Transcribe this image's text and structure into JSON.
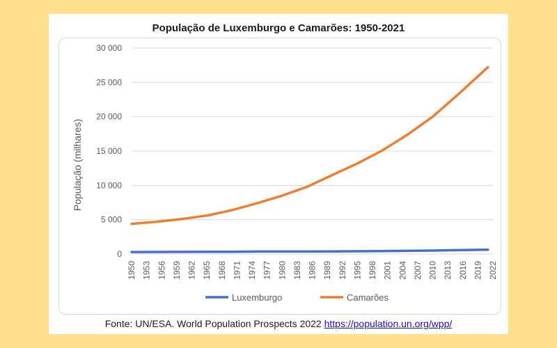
{
  "chart_data": {
    "type": "line",
    "title": "População de Luxemburgo e Camarões: 1950-2021",
    "ylabel": "População (milhares)",
    "xlabel": "",
    "ylim": [
      0,
      30000
    ],
    "yticks": [
      0,
      5000,
      10000,
      15000,
      20000,
      25000,
      30000
    ],
    "ytick_labels": [
      "0",
      "5 000",
      "10 000",
      "15 000",
      "20 000",
      "25 000",
      "30 000"
    ],
    "xlim": [
      1950,
      2022
    ],
    "xticks": [
      1950,
      1953,
      1956,
      1959,
      1962,
      1965,
      1968,
      1971,
      1974,
      1977,
      1980,
      1983,
      1986,
      1989,
      1992,
      1995,
      1998,
      2001,
      2004,
      2007,
      2010,
      2013,
      2016,
      2019,
      2022
    ],
    "grid": true,
    "legend_position": "bottom",
    "series": [
      {
        "name": "Luxemburgo",
        "color": "#4472C4",
        "x": [
          1950,
          1955,
          1960,
          1965,
          1970,
          1975,
          1980,
          1985,
          1990,
          1995,
          2000,
          2005,
          2010,
          2015,
          2021
        ],
        "y": [
          296,
          306,
          314,
          331,
          339,
          362,
          364,
          367,
          382,
          410,
          437,
          465,
          507,
          567,
          639
        ]
      },
      {
        "name": "Camarões",
        "color": "#ED7D31",
        "x": [
          1950,
          1955,
          1960,
          1965,
          1970,
          1975,
          1980,
          1985,
          1990,
          1995,
          2000,
          2005,
          2010,
          2015,
          2021
        ],
        "y": [
          4400,
          4700,
          5100,
          5600,
          6400,
          7400,
          8500,
          9800,
          11500,
          13200,
          15100,
          17400,
          20000,
          23200,
          27200
        ]
      }
    ]
  },
  "source": {
    "prefix": "Fonte: UN/ESA. World Population Prospects 2022 ",
    "link_text": "https://population.un.org/wpp/"
  }
}
